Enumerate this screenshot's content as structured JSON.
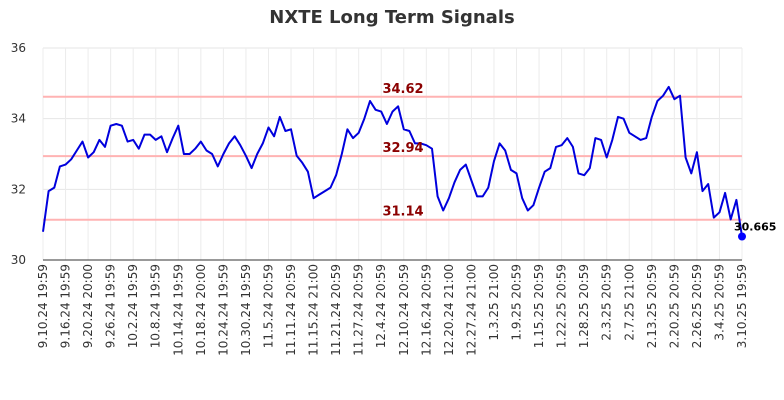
{
  "chart_data": {
    "type": "line",
    "title": "NXTE Long Term Signals",
    "xlabel": "",
    "ylabel": "",
    "ylim": [
      30,
      36
    ],
    "yticks": [
      30,
      32,
      34,
      36
    ],
    "grid": true,
    "legend": "none",
    "colors": {
      "line": "#0000dd",
      "hline": "#ffb3b3",
      "hline_label": "#8b0000",
      "last_dot": "#0000ff"
    },
    "x_tick_labels": [
      "9.10.24 19:59",
      "9.16.24 19:59",
      "9.20.24 20:00",
      "9.26.24 19:59",
      "10.2.24 19:59",
      "10.8.24 19:59",
      "10.14.24 19:59",
      "10.18.24 20:00",
      "10.24.24 19:59",
      "10.30.24 19:59",
      "11.5.24 20:59",
      "11.11.24 20:59",
      "11.15.24 21:00",
      "11.21.24 20:59",
      "11.27.24 20:59",
      "12.4.24 20:59",
      "12.10.24 20:59",
      "12.16.24 20:59",
      "12.20.24 21:00",
      "12.27.24 21:00",
      "1.3.25 21:00",
      "1.9.25 20:59",
      "1.15.25 20:59",
      "1.22.25 20:59",
      "1.28.25 20:59",
      "2.3.25 20:59",
      "2.7.25 21:00",
      "2.13.25 20:59",
      "2.20.25 20:59",
      "2.26.25 20:59",
      "3.4.25 20:59",
      "3.10.25 19:59"
    ],
    "hlines": [
      {
        "value": 34.62,
        "label": "34.62"
      },
      {
        "value": 32.94,
        "label": "32.94"
      },
      {
        "value": 31.14,
        "label": "31.14"
      }
    ],
    "last_value_label": "30.665",
    "series": [
      {
        "values": [
          30.8,
          31.95,
          32.05,
          32.65,
          32.7,
          32.85,
          33.1,
          33.35,
          32.9,
          33.05,
          33.4,
          33.2,
          33.8,
          33.85,
          33.8,
          33.35,
          33.4,
          33.15,
          33.55,
          33.55,
          33.4,
          33.5,
          33.05,
          33.45,
          33.8,
          33.0,
          33.0,
          33.15,
          33.35,
          33.1,
          33.0,
          32.65,
          33.0,
          33.3,
          33.5,
          33.25,
          32.95,
          32.6,
          33.0,
          33.3,
          33.75,
          33.5,
          34.05,
          33.65,
          33.7,
          32.95,
          32.75,
          32.5,
          31.75,
          31.85,
          31.95,
          32.05,
          32.4,
          33.0,
          33.7,
          33.45,
          33.6,
          34.0,
          34.5,
          34.25,
          34.2,
          33.85,
          34.2,
          34.35,
          33.7,
          33.65,
          33.3,
          33.3,
          33.25,
          33.15,
          31.8,
          31.4,
          31.75,
          32.2,
          32.55,
          32.7,
          32.25,
          31.8,
          31.8,
          32.05,
          32.8,
          33.3,
          33.1,
          32.55,
          32.45,
          31.75,
          31.4,
          31.55,
          32.05,
          32.5,
          32.6,
          33.2,
          33.25,
          33.45,
          33.2,
          32.45,
          32.4,
          32.6,
          33.45,
          33.4,
          32.9,
          33.4,
          34.05,
          34.0,
          33.6,
          33.5,
          33.4,
          33.45,
          34.05,
          34.5,
          34.65,
          34.9,
          34.55,
          34.65,
          32.9,
          32.45,
          33.05,
          31.95,
          32.15,
          31.2,
          31.35,
          31.9,
          31.15,
          31.7,
          30.665
        ]
      }
    ]
  }
}
